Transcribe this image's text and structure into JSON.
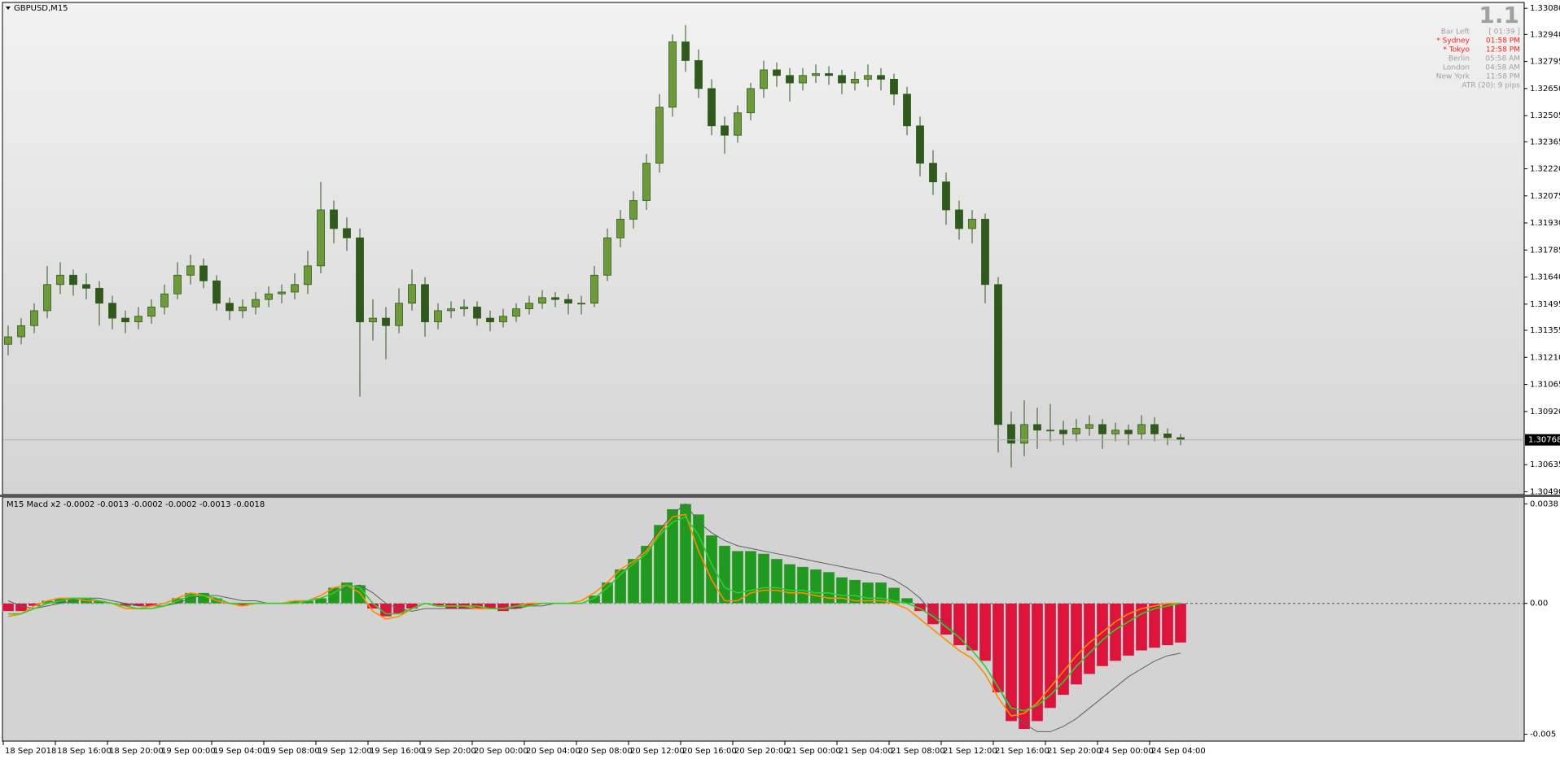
{
  "chart_data": [
    {
      "type": "candlestick",
      "title": "GBPUSD,M15",
      "candle_stroke": "#2f5a1c",
      "bull_color": "#6f9a3a",
      "bear_color": "#2f5a1c",
      "ylim": [
        1.30479,
        1.33107
      ],
      "yticks": [
        {
          "value": 1.3308,
          "label": "1.33080"
        },
        {
          "value": 1.3294,
          "label": "1.32940"
        },
        {
          "value": 1.32795,
          "label": "1.32795"
        },
        {
          "value": 1.3265,
          "label": "1.32650"
        },
        {
          "value": 1.32505,
          "label": "1.32505"
        },
        {
          "value": 1.32365,
          "label": "1.32365"
        },
        {
          "value": 1.3222,
          "label": "1.32220"
        },
        {
          "value": 1.32075,
          "label": "1.32075"
        },
        {
          "value": 1.3193,
          "label": "1.31930"
        },
        {
          "value": 1.31785,
          "label": "1.31785"
        },
        {
          "value": 1.3164,
          "label": "1.31640"
        },
        {
          "value": 1.31495,
          "label": "1.31495"
        },
        {
          "value": 1.31355,
          "label": "1.31355"
        },
        {
          "value": 1.3121,
          "label": "1.31210"
        },
        {
          "value": 1.31065,
          "label": "1.31065"
        },
        {
          "value": 1.3092,
          "label": "1.30920"
        },
        {
          "value": 1.30635,
          "label": "1.30635"
        },
        {
          "value": 1.3049,
          "label": "1.30490"
        }
      ],
      "current_price": 1.30768,
      "x_labels": [
        "18 Sep 2018",
        "18 Sep 16:00",
        "18 Sep 20:00",
        "19 Sep 00:00",
        "19 Sep 04:00",
        "19 Sep 08:00",
        "19 Sep 12:00",
        "19 Sep 16:00",
        "19 Sep 20:00",
        "20 Sep 00:00",
        "20 Sep 04:00",
        "20 Sep 08:00",
        "20 Sep 12:00",
        "20 Sep 16:00",
        "20 Sep 20:00",
        "21 Sep 00:00",
        "21 Sep 04:00",
        "21 Sep 08:00",
        "21 Sep 12:00",
        "21 Sep 16:00",
        "21 Sep 20:00",
        "24 Sep 00:00",
        "24 Sep 04:00"
      ],
      "info_panel": {
        "big": "1.1",
        "rows": [
          {
            "label": "Bar Left",
            "value": "[ 01:39 ]",
            "color": "#a0a0a0"
          },
          {
            "label": "* Sydney",
            "value": "01:58 PM",
            "color": "#ff2020"
          },
          {
            "label": "* Tokyo",
            "value": "12:58 PM",
            "color": "#ff2020"
          },
          {
            "label": "Berlin",
            "value": "05:58 AM",
            "color": "#a0a0a0"
          },
          {
            "label": "London",
            "value": "04:58 AM",
            "color": "#a0a0a0"
          },
          {
            "label": "New York",
            "value": "11:58 PM",
            "color": "#a0a0a0"
          },
          {
            "label": "ATR (20): 9 pips",
            "color": "#a0a0a0"
          }
        ]
      },
      "candles": [
        [
          1.3128,
          1.3138,
          1.3122,
          1.3132
        ],
        [
          1.3132,
          1.3142,
          1.3128,
          1.3138
        ],
        [
          1.3138,
          1.315,
          1.3134,
          1.3146
        ],
        [
          1.3146,
          1.317,
          1.3142,
          1.316
        ],
        [
          1.316,
          1.3172,
          1.3155,
          1.3165
        ],
        [
          1.3165,
          1.3168,
          1.3154,
          1.316
        ],
        [
          1.316,
          1.3166,
          1.3152,
          1.3158
        ],
        [
          1.3158,
          1.3162,
          1.3138,
          1.315
        ],
        [
          1.315,
          1.3154,
          1.3136,
          1.3142
        ],
        [
          1.3142,
          1.3146,
          1.3134,
          1.314
        ],
        [
          1.314,
          1.3148,
          1.3136,
          1.3143
        ],
        [
          1.3143,
          1.3152,
          1.3139,
          1.3148
        ],
        [
          1.3148,
          1.316,
          1.3144,
          1.3155
        ],
        [
          1.3155,
          1.3172,
          1.3152,
          1.3165
        ],
        [
          1.3165,
          1.3176,
          1.316,
          1.317
        ],
        [
          1.317,
          1.3174,
          1.3158,
          1.3162
        ],
        [
          1.3162,
          1.3165,
          1.3146,
          1.315
        ],
        [
          1.315,
          1.3153,
          1.3141,
          1.3146
        ],
        [
          1.3146,
          1.3152,
          1.3142,
          1.3148
        ],
        [
          1.3148,
          1.3156,
          1.3144,
          1.3152
        ],
        [
          1.3152,
          1.3159,
          1.3148,
          1.3155
        ],
        [
          1.3155,
          1.316,
          1.315,
          1.3156
        ],
        [
          1.3156,
          1.3166,
          1.3152,
          1.316
        ],
        [
          1.316,
          1.3178,
          1.3155,
          1.317
        ],
        [
          1.317,
          1.3215,
          1.3166,
          1.32
        ],
        [
          1.32,
          1.3205,
          1.3182,
          1.319
        ],
        [
          1.319,
          1.3196,
          1.3178,
          1.3185
        ],
        [
          1.3185,
          1.319,
          1.31,
          1.314
        ],
        [
          1.314,
          1.3152,
          1.313,
          1.3142
        ],
        [
          1.3142,
          1.3148,
          1.312,
          1.3138
        ],
        [
          1.3138,
          1.3158,
          1.3134,
          1.315
        ],
        [
          1.315,
          1.3168,
          1.3146,
          1.316
        ],
        [
          1.316,
          1.3164,
          1.3132,
          1.314
        ],
        [
          1.314,
          1.315,
          1.3136,
          1.3146
        ],
        [
          1.3146,
          1.3151,
          1.3142,
          1.3147
        ],
        [
          1.3147,
          1.3152,
          1.3143,
          1.3148
        ],
        [
          1.3148,
          1.3151,
          1.3138,
          1.3142
        ],
        [
          1.3142,
          1.3146,
          1.3135,
          1.314
        ],
        [
          1.314,
          1.3147,
          1.3137,
          1.3143
        ],
        [
          1.3143,
          1.315,
          1.314,
          1.3147
        ],
        [
          1.3147,
          1.3154,
          1.3144,
          1.315
        ],
        [
          1.315,
          1.3157,
          1.3147,
          1.3153
        ],
        [
          1.3153,
          1.3156,
          1.3148,
          1.3152
        ],
        [
          1.3152,
          1.3155,
          1.3144,
          1.315
        ],
        [
          1.315,
          1.3154,
          1.3144,
          1.315
        ],
        [
          1.315,
          1.317,
          1.3148,
          1.3165
        ],
        [
          1.3165,
          1.319,
          1.3162,
          1.3185
        ],
        [
          1.3185,
          1.32,
          1.318,
          1.3195
        ],
        [
          1.3195,
          1.321,
          1.319,
          1.3205
        ],
        [
          1.3205,
          1.323,
          1.32,
          1.3225
        ],
        [
          1.3225,
          1.3262,
          1.322,
          1.3255
        ],
        [
          1.3255,
          1.3294,
          1.325,
          1.329
        ],
        [
          1.329,
          1.3299,
          1.3274,
          1.328
        ],
        [
          1.328,
          1.3286,
          1.326,
          1.3265
        ],
        [
          1.3265,
          1.327,
          1.324,
          1.3245
        ],
        [
          1.3245,
          1.325,
          1.323,
          1.324
        ],
        [
          1.324,
          1.3256,
          1.3236,
          1.3252
        ],
        [
          1.3252,
          1.3268,
          1.3248,
          1.3265
        ],
        [
          1.3265,
          1.328,
          1.326,
          1.3275
        ],
        [
          1.3275,
          1.3279,
          1.3266,
          1.3272
        ],
        [
          1.3272,
          1.3276,
          1.3258,
          1.3268
        ],
        [
          1.3268,
          1.3276,
          1.3264,
          1.3272
        ],
        [
          1.3272,
          1.3278,
          1.3268,
          1.3273
        ],
        [
          1.3273,
          1.3277,
          1.3267,
          1.3272
        ],
        [
          1.3272,
          1.3275,
          1.3262,
          1.3268
        ],
        [
          1.3268,
          1.3274,
          1.3264,
          1.327
        ],
        [
          1.327,
          1.3278,
          1.3266,
          1.3272
        ],
        [
          1.3272,
          1.3276,
          1.3264,
          1.327
        ],
        [
          1.327,
          1.3273,
          1.3256,
          1.3262
        ],
        [
          1.3262,
          1.3266,
          1.324,
          1.3245
        ],
        [
          1.3245,
          1.325,
          1.3218,
          1.3225
        ],
        [
          1.3225,
          1.3232,
          1.3208,
          1.3215
        ],
        [
          1.3215,
          1.322,
          1.3192,
          1.32
        ],
        [
          1.32,
          1.3205,
          1.3184,
          1.319
        ],
        [
          1.319,
          1.32,
          1.3182,
          1.3195
        ],
        [
          1.3195,
          1.3198,
          1.315,
          1.316
        ],
        [
          1.316,
          1.3164,
          1.307,
          1.3085
        ],
        [
          1.3085,
          1.3092,
          1.3062,
          1.3075
        ],
        [
          1.3075,
          1.3098,
          1.3068,
          1.3085
        ],
        [
          1.3085,
          1.3094,
          1.3072,
          1.3082
        ],
        [
          1.3082,
          1.3096,
          1.3076,
          1.3082
        ],
        [
          1.3082,
          1.3087,
          1.3074,
          1.308
        ],
        [
          1.308,
          1.3088,
          1.3076,
          1.3083
        ],
        [
          1.3083,
          1.309,
          1.3079,
          1.3085
        ],
        [
          1.3085,
          1.3088,
          1.3072,
          1.308
        ],
        [
          1.308,
          1.3086,
          1.3076,
          1.3082
        ],
        [
          1.3082,
          1.3085,
          1.3074,
          1.308
        ],
        [
          1.308,
          1.309,
          1.3077,
          1.3085
        ],
        [
          1.3085,
          1.3089,
          1.3076,
          1.308
        ],
        [
          1.308,
          1.3083,
          1.3074,
          1.3078
        ],
        [
          1.3078,
          1.308,
          1.3074,
          1.30768
        ]
      ]
    },
    {
      "type": "macd",
      "title": "M15 Macd x2 -0.0002 -0.0013 -0.0002 -0.0002 -0.0013 -0.0018",
      "ylim": [
        -0.00526,
        0.00403
      ],
      "yticks": [
        0.0038,
        {
          "value": 0,
          "label": "0.00"
        },
        -0.005
      ],
      "positive_color": "#1f9a1f",
      "negative_color": "#dc143c",
      "histogram": [
        -0.0003,
        -0.0003,
        -0.0001,
        0.0001,
        0.0002,
        0.0002,
        0.0002,
        0.0001,
        0,
        -0.0001,
        -0.0001,
        -0.0001,
        0,
        0.0002,
        0.0004,
        0.0004,
        0.0002,
        0,
        -0.0001,
        0,
        0,
        0,
        0.0001,
        0.0001,
        0.0002,
        0.0006,
        0.0008,
        0.0007,
        -0.0002,
        -0.0005,
        -0.0004,
        -0.0002,
        0,
        -0.0001,
        -0.0002,
        -0.0002,
        -0.0002,
        -0.0002,
        -0.0003,
        -0.0002,
        -0.0001,
        0,
        0,
        0,
        0,
        0.0003,
        0.0008,
        0.0013,
        0.0017,
        0.0022,
        0.003,
        0.0036,
        0.0038,
        0.0034,
        0.0026,
        0.0022,
        0.002,
        0.002,
        0.0019,
        0.0017,
        0.0015,
        0.0014,
        0.0013,
        0.0012,
        0.001,
        0.0009,
        0.0008,
        0.0008,
        0.0006,
        0.0002,
        -0.0003,
        -0.0008,
        -0.0012,
        -0.0016,
        -0.0018,
        -0.0022,
        -0.0034,
        -0.0045,
        -0.0048,
        -0.0045,
        -0.004,
        -0.0035,
        -0.0031,
        -0.0027,
        -0.0024,
        -0.0022,
        -0.002,
        -0.0018,
        -0.0017,
        -0.0016,
        -0.0015
      ],
      "lines": [
        {
          "color": "#606060",
          "values": [
            0.0001,
            -0.0001,
            -0.0002,
            -0.0001,
            0,
            0.0001,
            0.0002,
            0.0002,
            0.0001,
            0,
            -0.0001,
            -0.0001,
            -0.0001,
            0,
            0.0002,
            0.0003,
            0.0003,
            0.0002,
            0.0001,
            0.0001,
            0,
            0,
            0.0001,
            0.0001,
            0.0002,
            0.0004,
            0.0006,
            0.0007,
            0.0004,
            0,
            -0.0002,
            -0.0003,
            -0.0002,
            -0.0002,
            -0.0002,
            -0.0002,
            -0.0002,
            -0.0002,
            -0.0002,
            -0.0002,
            -0.0001,
            -0.0001,
            0,
            0,
            0,
            0.0002,
            0.0006,
            0.0011,
            0.0016,
            0.0021,
            0.0028,
            0.0034,
            0.0038,
            0.0031,
            0.0027,
            0.0024,
            0.0022,
            0.0021,
            0.002,
            0.0019,
            0.0018,
            0.0017,
            0.0016,
            0.0015,
            0.0014,
            0.0013,
            0.0012,
            0.0011,
            0.0009,
            0.0006,
            0.0002,
            -0.0004,
            -0.0008,
            -0.0013,
            -0.0018,
            -0.0024,
            -0.0032,
            -0.0041,
            -0.0046,
            -0.0049,
            -0.0049,
            -0.0047,
            -0.0044,
            -0.004,
            -0.0036,
            -0.0032,
            -0.0028,
            -0.0025,
            -0.0022,
            -0.002,
            -0.0019
          ]
        },
        {
          "color": "#ff8c00",
          "values": [
            -0.0005,
            -0.0004,
            -0.0001,
            0.0001,
            0.0002,
            0.0002,
            0.0001,
            0.0001,
            0,
            -0.0002,
            -0.0002,
            -0.0001,
            0,
            0.0002,
            0.0004,
            0.0003,
            0.0001,
            0,
            -0.0001,
            0,
            0,
            0,
            0.0001,
            0.0001,
            0.0003,
            0.0006,
            0.0007,
            0.0004,
            -0.0003,
            -0.0006,
            -0.0005,
            -0.0002,
            0,
            -0.0001,
            -0.0001,
            -0.0001,
            -0.0002,
            -0.0002,
            -0.0002,
            -0.0001,
            0,
            0,
            0,
            0,
            0.0001,
            0.0004,
            0.0008,
            0.0013,
            0.0016,
            0.002,
            0.0027,
            0.0033,
            0.0034,
            0.002,
            0.0009,
            0.0001,
            0.0001,
            0.0004,
            0.0005,
            0.0005,
            0.0004,
            0.0004,
            0.0003,
            0.0002,
            0.0002,
            0.0001,
            0.0001,
            0.0001,
            0,
            -0.0002,
            -0.0006,
            -0.001,
            -0.0014,
            -0.0018,
            -0.0021,
            -0.0027,
            -0.0036,
            -0.0043,
            -0.0042,
            -0.0038,
            -0.0032,
            -0.0026,
            -0.002,
            -0.0015,
            -0.0011,
            -0.0007,
            -0.0004,
            -0.0002,
            -0.0001,
            0,
            0
          ]
        },
        {
          "color": "#32cd32",
          "values": [
            -0.0004,
            -0.0004,
            -0.0002,
            0,
            0.0001,
            0.0002,
            0.0002,
            0.0001,
            0,
            -0.0001,
            -0.0002,
            -0.0002,
            -0.0001,
            0.0001,
            0.0003,
            0.0003,
            0.0002,
            0,
            0,
            0,
            0,
            0,
            0,
            0.0001,
            0.0002,
            0.0004,
            0.0007,
            0.0006,
            0,
            -0.0004,
            -0.0004,
            -0.0002,
            0,
            -0.0001,
            -0.0001,
            -0.0001,
            -0.0001,
            -0.0002,
            -0.0002,
            -0.0001,
            -0.0001,
            0,
            0,
            0,
            0,
            0.0002,
            0.0006,
            0.0011,
            0.0015,
            0.0019,
            0.0026,
            0.0031,
            0.0033,
            0.0026,
            0.0015,
            0.0006,
            0.0004,
            0.0005,
            0.0006,
            0.0006,
            0.0005,
            0.0005,
            0.0004,
            0.0004,
            0.0003,
            0.0003,
            0.0002,
            0.0002,
            0.0001,
            0,
            -0.0002,
            -0.0005,
            -0.0009,
            -0.0013,
            -0.0018,
            -0.0024,
            -0.0032,
            -0.004,
            -0.0041,
            -0.0039,
            -0.0035,
            -0.003,
            -0.0024,
            -0.0019,
            -0.0014,
            -0.001,
            -0.0007,
            -0.0004,
            -0.0002,
            -0.0001,
            0
          ]
        }
      ]
    }
  ]
}
